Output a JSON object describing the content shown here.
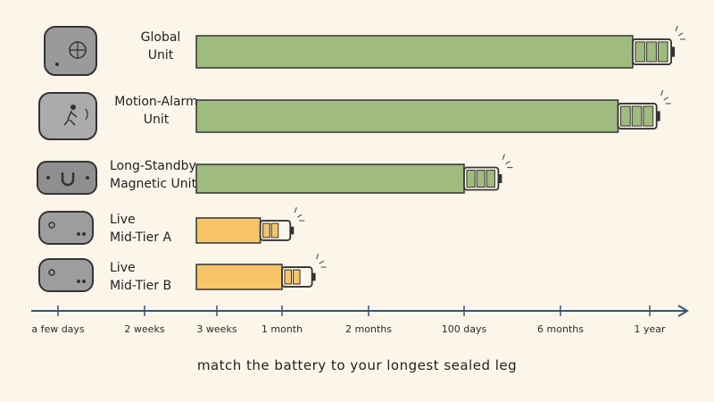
{
  "chart_data": {
    "type": "bar",
    "orientation": "horizontal",
    "x_scale": "piecewise",
    "categories": [
      "Global\nUnit",
      "Motion-Alarm\nUnit",
      "Long-Standby\nMagnetic Unit",
      "Live\nMid-Tier A",
      "Live\nMid-Tier B"
    ],
    "values": [
      330,
      300,
      100,
      27,
      30
    ],
    "colors": [
      "#9fbb7e",
      "#9fbb7e",
      "#9fbb7e",
      "#f8c468",
      "#f8c468"
    ],
    "xticks": [
      {
        "value": 3,
        "label": "a few days"
      },
      {
        "value": 14,
        "label": "2 weeks"
      },
      {
        "value": 21,
        "label": "3 weeks"
      },
      {
        "value": 30,
        "label": "1 month"
      },
      {
        "value": 60,
        "label": "2 months"
      },
      {
        "value": 100,
        "label": "100 days"
      },
      {
        "value": 182,
        "label": "6 months"
      },
      {
        "value": 365,
        "label": "1 year"
      }
    ],
    "caption": "match the battery to your longest sealed leg"
  }
}
